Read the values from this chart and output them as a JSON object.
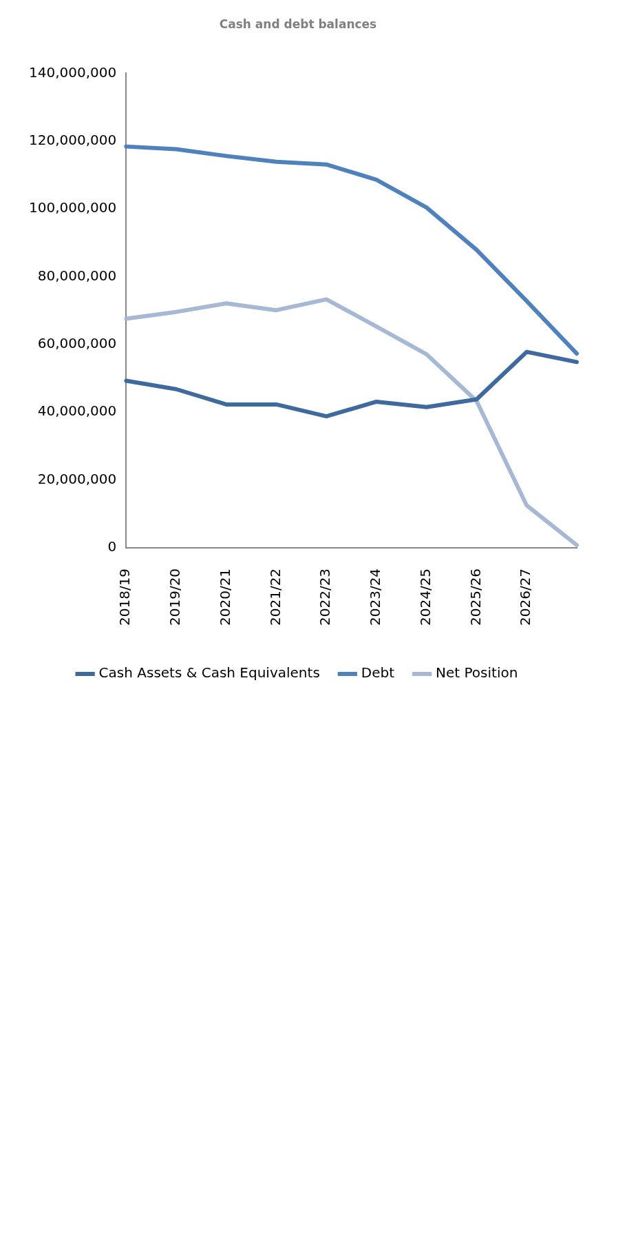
{
  "chart_data": {
    "type": "line",
    "title": "Cash and debt balances",
    "categories": [
      "2018/19",
      "2019/20",
      "2020/21",
      "2021/22",
      "2022/23",
      "2023/24",
      "2024/25",
      "2025/26",
      "2026/27",
      null
    ],
    "series": [
      {
        "name": "Cash Assets & Cash Equivalents",
        "color": "#3e6a9e",
        "values": [
          49300000,
          46800000,
          42300000,
          42300000,
          38800000,
          43100000,
          41500000,
          43800000,
          57800000,
          54800000
        ]
      },
      {
        "name": "Debt",
        "color": "#4f81bd",
        "values": [
          118400000,
          117600000,
          115600000,
          113900000,
          113100000,
          108600000,
          100400000,
          87900000,
          72800000,
          57300000
        ]
      },
      {
        "name": "Net Position",
        "color": "#a6b8d4",
        "values": [
          67600000,
          69600000,
          72100000,
          70100000,
          73300000,
          65300000,
          57100000,
          43300000,
          12500000,
          800000
        ]
      }
    ],
    "ylim": [
      0,
      140000000
    ],
    "yticks": [
      0,
      {
        "value": 20000000,
        "label": "20,000,000"
      },
      {
        "value": 40000000,
        "label": "40,000,000"
      },
      {
        "value": 60000000,
        "label": "60,000,000"
      },
      {
        "value": 80000000,
        "label": "80,000,000"
      },
      {
        "value": 100000000,
        "label": "100,000,000"
      },
      {
        "value": 120000000,
        "label": "120,000,000"
      },
      {
        "value": 140000000,
        "label": "140,000,000"
      }
    ],
    "grid": false,
    "legend": "bottom",
    "marker": "none",
    "line_style": "solid"
  }
}
